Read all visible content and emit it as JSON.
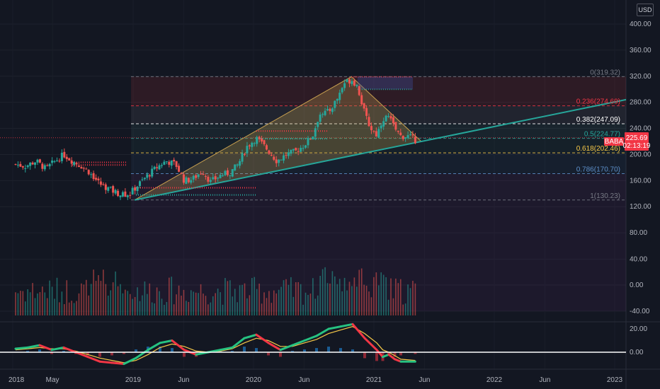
{
  "currency_button": "USD",
  "ticker": {
    "symbol": "BABA",
    "price": "225.69",
    "countdown": "02:13:19",
    "color": "#f23645"
  },
  "colors": {
    "up": "#26a69a",
    "down": "#ef5350",
    "trend": "#26a69a",
    "triangle_fill": "#c8a050",
    "macd_line": "#26c281",
    "signal_line": "#f7c948"
  },
  "chart_data": [
    {
      "type": "candlestick",
      "symbol": "BABA",
      "price_axis": {
        "ticks": [
          "400.00",
          "360.00",
          "320.00",
          "280.00",
          "240.00",
          "200.00",
          "160.00",
          "120.00",
          "80.00",
          "40.00",
          "0.00",
          "-40.00"
        ],
        "ylim": [
          -50,
          420
        ]
      },
      "time_axis": {
        "ticks": [
          "2018",
          "May",
          "2019",
          "Jun",
          "2020",
          "Jun",
          "2021",
          "Jun",
          "2022",
          "Jun",
          "2023"
        ]
      },
      "last_price": 225.69,
      "fib_levels": [
        {
          "label": "0(319.32)",
          "value": 319.32,
          "color": "#787b86"
        },
        {
          "label": "0.236(274.69)",
          "value": 274.69,
          "color": "#f23645"
        },
        {
          "label": "0.382(247.09)",
          "value": 247.09,
          "color": "#ffffff"
        },
        {
          "label": "0.5(224.77)",
          "value": 224.77,
          "color": "#26a69a"
        },
        {
          "label": "0.618(202.46)",
          "value": 202.46,
          "color": "#f7c948"
        },
        {
          "label": "0.786(170.70)",
          "value": 170.7,
          "color": "#5d8fc9"
        },
        {
          "label": "1(130.23)",
          "value": 130.23,
          "color": "#787b86"
        }
      ],
      "price_path": [
        [
          2018.0,
          185
        ],
        [
          2018.08,
          182
        ],
        [
          2018.17,
          190
        ],
        [
          2018.25,
          178
        ],
        [
          2018.33,
          190
        ],
        [
          2018.4,
          200
        ],
        [
          2018.47,
          190
        ],
        [
          2018.55,
          182
        ],
        [
          2018.62,
          172
        ],
        [
          2018.7,
          155
        ],
        [
          2018.8,
          145
        ],
        [
          2018.88,
          138
        ],
        [
          2018.95,
          140
        ],
        [
          2019.0,
          150
        ],
        [
          2019.08,
          165
        ],
        [
          2019.17,
          180
        ],
        [
          2019.25,
          190
        ],
        [
          2019.33,
          185
        ],
        [
          2019.4,
          160
        ],
        [
          2019.47,
          162
        ],
        [
          2019.55,
          175
        ],
        [
          2019.62,
          158
        ],
        [
          2019.7,
          168
        ],
        [
          2019.78,
          172
        ],
        [
          2019.85,
          185
        ],
        [
          2019.92,
          212
        ],
        [
          2020.0,
          225
        ],
        [
          2020.08,
          210
        ],
        [
          2020.17,
          190
        ],
        [
          2020.25,
          200
        ],
        [
          2020.33,
          205
        ],
        [
          2020.4,
          215
        ],
        [
          2020.47,
          230
        ],
        [
          2020.53,
          265
        ],
        [
          2020.6,
          265
        ],
        [
          2020.67,
          285
        ],
        [
          2020.73,
          310
        ],
        [
          2020.79,
          315
        ],
        [
          2020.84,
          305
        ],
        [
          2020.9,
          262
        ],
        [
          2020.95,
          240
        ],
        [
          2021.0,
          230
        ],
        [
          2021.05,
          255
        ],
        [
          2021.1,
          258
        ],
        [
          2021.15,
          240
        ],
        [
          2021.2,
          228
        ],
        [
          2021.27,
          228
        ],
        [
          2021.32,
          222
        ]
      ]
    },
    {
      "type": "bar",
      "name": "volume",
      "axis_ticks": [
        "40.00",
        "0.00",
        "-40.00"
      ]
    },
    {
      "type": "line",
      "name": "oscillator",
      "axis_ticks": [
        "20.00",
        "0.00"
      ],
      "ylim": [
        -12,
        26
      ],
      "series": [
        {
          "values": [
            [
              2018.0,
              3
            ],
            [
              2018.1,
              4
            ],
            [
              2018.2,
              6
            ],
            [
              2018.3,
              2
            ],
            [
              2018.4,
              4
            ],
            [
              2018.5,
              0
            ],
            [
              2018.6,
              -4
            ],
            [
              2018.7,
              -8
            ],
            [
              2018.8,
              -9
            ],
            [
              2018.9,
              -10
            ],
            [
              2019.0,
              -5
            ],
            [
              2019.1,
              2
            ],
            [
              2019.2,
              8
            ],
            [
              2019.3,
              10
            ],
            [
              2019.4,
              2
            ],
            [
              2019.5,
              -2
            ],
            [
              2019.6,
              0
            ],
            [
              2019.7,
              2
            ],
            [
              2019.8,
              4
            ],
            [
              2019.9,
              12
            ],
            [
              2020.0,
              15
            ],
            [
              2020.1,
              8
            ],
            [
              2020.2,
              2
            ],
            [
              2020.3,
              6
            ],
            [
              2020.4,
              10
            ],
            [
              2020.5,
              14
            ],
            [
              2020.6,
              20
            ],
            [
              2020.7,
              22
            ],
            [
              2020.8,
              24
            ],
            [
              2020.9,
              12
            ],
            [
              2021.0,
              2
            ],
            [
              2021.05,
              -4
            ],
            [
              2021.1,
              -2
            ],
            [
              2021.15,
              -6
            ],
            [
              2021.2,
              -8
            ],
            [
              2021.32,
              -8
            ]
          ]
        },
        {
          "values": [
            [
              2018.0,
              2
            ],
            [
              2018.1,
              3
            ],
            [
              2018.2,
              4
            ],
            [
              2018.3,
              3
            ],
            [
              2018.4,
              3
            ],
            [
              2018.5,
              1
            ],
            [
              2018.6,
              -2
            ],
            [
              2018.7,
              -5
            ],
            [
              2018.8,
              -7
            ],
            [
              2018.9,
              -9
            ],
            [
              2019.0,
              -7
            ],
            [
              2019.1,
              -2
            ],
            [
              2019.2,
              4
            ],
            [
              2019.3,
              7
            ],
            [
              2019.4,
              5
            ],
            [
              2019.5,
              1
            ],
            [
              2019.6,
              0
            ],
            [
              2019.7,
              1
            ],
            [
              2019.8,
              3
            ],
            [
              2019.9,
              8
            ],
            [
              2020.0,
              12
            ],
            [
              2020.1,
              10
            ],
            [
              2020.2,
              5
            ],
            [
              2020.3,
              5
            ],
            [
              2020.4,
              8
            ],
            [
              2020.5,
              11
            ],
            [
              2020.6,
              16
            ],
            [
              2020.7,
              19
            ],
            [
              2020.8,
              22
            ],
            [
              2020.9,
              16
            ],
            [
              2021.0,
              8
            ],
            [
              2021.05,
              2
            ],
            [
              2021.1,
              0
            ],
            [
              2021.15,
              -3
            ],
            [
              2021.2,
              -6
            ],
            [
              2021.32,
              -7
            ]
          ]
        }
      ]
    }
  ]
}
